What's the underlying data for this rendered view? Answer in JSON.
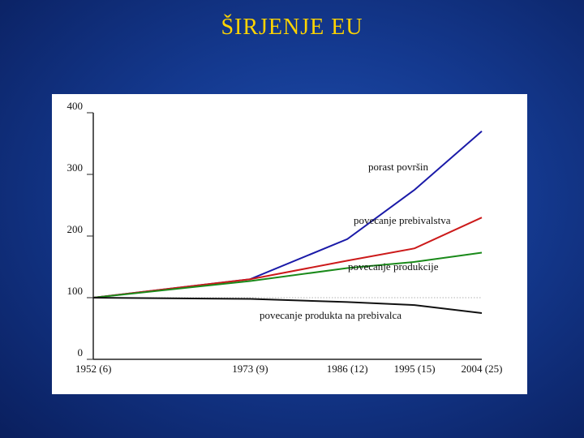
{
  "slide": {
    "title": "ŠIRJENJE EU"
  },
  "chart_data": {
    "type": "line",
    "title": "ŠIRJENJE EU",
    "x": [
      "1952 (6)",
      "1973 (9)",
      "1986 (12)",
      "1995 (15)",
      "2004 (25)"
    ],
    "x_positions": [
      1952,
      1973,
      1986,
      1995,
      2004
    ],
    "ylim": [
      0,
      400
    ],
    "yticks": [
      0,
      100,
      200,
      300,
      400
    ],
    "grid": false,
    "reference_line": 100,
    "series": [
      {
        "name": "porast površin",
        "color": "#1a1aa8",
        "values": [
          100,
          130,
          195,
          275,
          370
        ]
      },
      {
        "name": "povecanje prebivalstva",
        "color": "#cc1a1a",
        "values": [
          100,
          130,
          160,
          180,
          230
        ]
      },
      {
        "name": "povecanje produkcije",
        "color": "#1a8a1a",
        "values": [
          100,
          127,
          148,
          158,
          173
        ]
      },
      {
        "name": "povecanje produkta na prebivalca",
        "color": "#111111",
        "values": [
          100,
          98,
          93,
          88,
          75
        ]
      }
    ]
  }
}
